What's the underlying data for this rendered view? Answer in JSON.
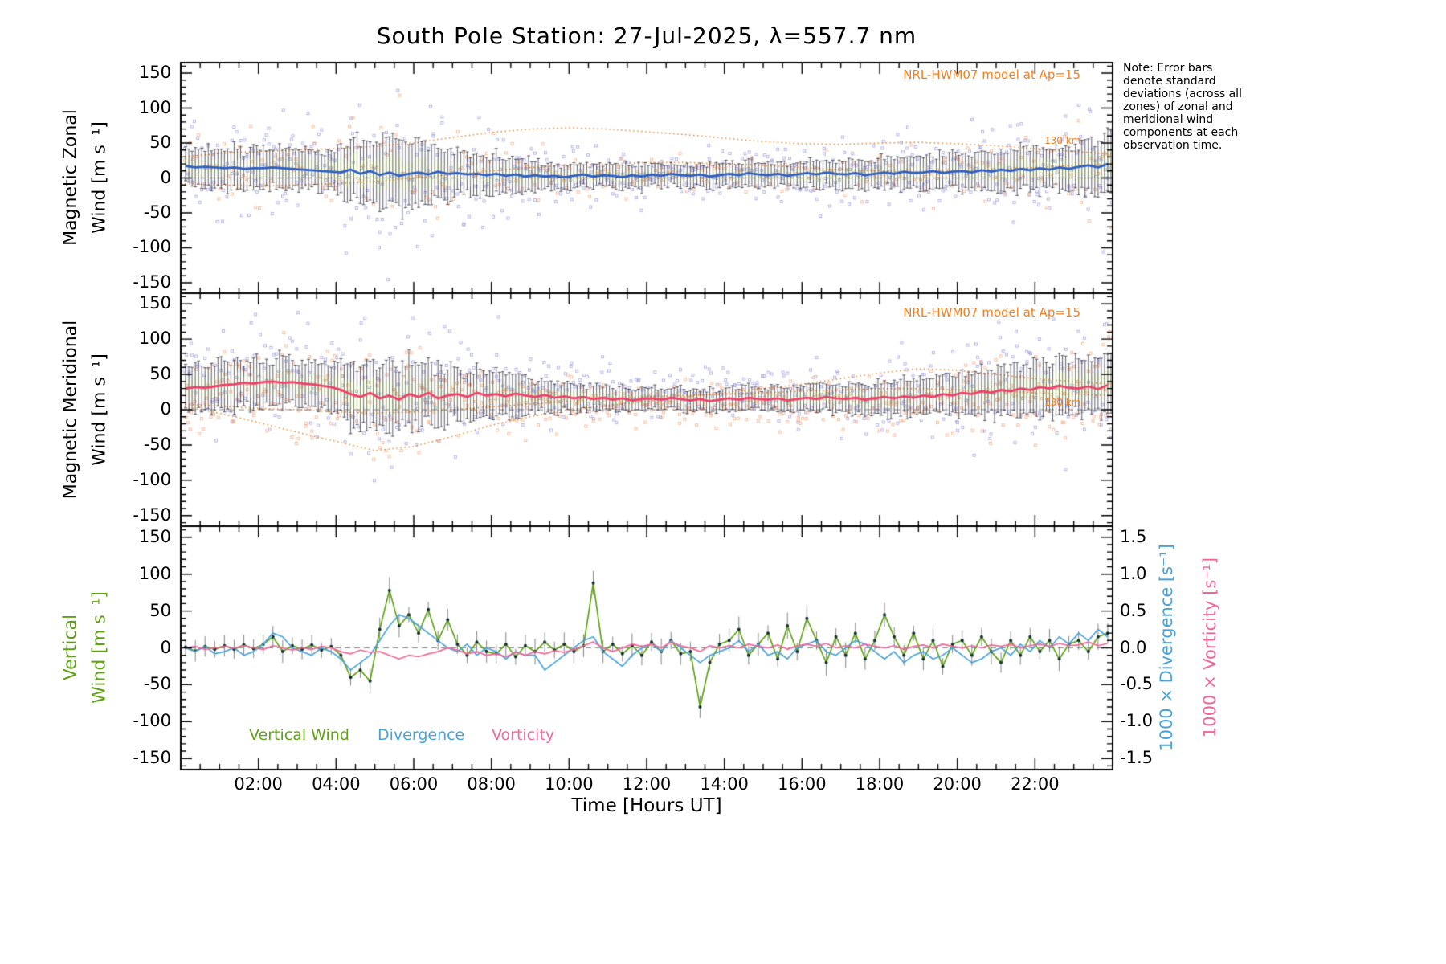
{
  "title": "South Pole Station: 27-Jul-2025, λ=557.7 nm",
  "note": "Note: Error bars denote standard deviations (across all zones) of zonal and meridional wind components at each observation time.",
  "x_axis": {
    "label": "Time [Hours UT]",
    "tick_hours": [
      2,
      4,
      6,
      8,
      10,
      12,
      14,
      16,
      18,
      20,
      22
    ],
    "tick_labels": [
      "02:00",
      "04:00",
      "06:00",
      "08:00",
      "10:00",
      "12:00",
      "14:00",
      "16:00",
      "18:00",
      "20:00",
      "22:00"
    ],
    "range_hours": [
      0,
      24
    ]
  },
  "panels": {
    "zonal": {
      "label_line1": "Magnetic Zonal",
      "label_line2": "Wind [m s⁻¹]",
      "annotation": "NRL-HWM07 model at Ap=15",
      "altitude": "130 km"
    },
    "meridional": {
      "label_line1": "Magnetic Meridional",
      "label_line2": "Wind [m s⁻¹]",
      "annotation": "NRL-HWM07 model at Ap=15",
      "altitude": "130 km"
    },
    "vertical": {
      "label_line1": "Vertical",
      "label_line2": "Wind [m s⁻¹]"
    }
  },
  "right_axes": [
    {
      "label": "1000 × Divergence [s⁻¹]",
      "color": "#4aa3d8"
    },
    {
      "label": "1000 × Vorticity [s⁻¹]",
      "color": "#f0679a"
    }
  ],
  "legend": [
    {
      "label": "Vertical Wind",
      "color": "#5fa314"
    },
    {
      "label": "Divergence",
      "color": "#4aa3d8"
    },
    {
      "label": "Vorticity",
      "color": "#f0679a"
    }
  ],
  "colors": {
    "frame": "#000000",
    "zonal_line": "#2e5fc4",
    "meridional_line": "#ef4068",
    "scatter_lavender": "#9696dc",
    "scatter_salmon": "#f4a073",
    "model_orange": "#f08020",
    "errorbar_dark": "#37374 6",
    "errorbar_green": "#96b446",
    "vertical_line": "#5fa314",
    "vertical_point": "#173238",
    "divergence_line": "#4aa3d8",
    "vorticity_line": "#f0679a",
    "zero_line": "#888888",
    "error_gray": "#888888",
    "annotation_orange": "#f08020"
  },
  "chart_data": [
    {
      "type": "line",
      "title": "Magnetic Zonal Wind",
      "ylabel": "Magnetic Zonal Wind [m s⁻¹]",
      "xlabel": "Time [Hours UT]",
      "ylim": [
        -165,
        165
      ],
      "yticks": [
        -150,
        -100,
        -50,
        0,
        50,
        100,
        150
      ],
      "x_start_hours": 0.125,
      "x_step_hours": 0.25,
      "annotation": "NRL-HWM07 model at Ap=15",
      "altitude_label": "130 km",
      "series": [
        {
          "name": "mean",
          "values": [
            17,
            15,
            16,
            15,
            14,
            15,
            13,
            14,
            14,
            15,
            14,
            13,
            12,
            11,
            10,
            9,
            8,
            12,
            6,
            10,
            4,
            8,
            3,
            6,
            8,
            5,
            9,
            6,
            7,
            5,
            6,
            4,
            6,
            3,
            5,
            2,
            4,
            2,
            3,
            1,
            3,
            5,
            2,
            4,
            3,
            1,
            4,
            2,
            5,
            3,
            6,
            4,
            3,
            5,
            2,
            4,
            6,
            4,
            7,
            5,
            4,
            6,
            3,
            5,
            7,
            5,
            8,
            6,
            5,
            7,
            4,
            6,
            8,
            6,
            9,
            7,
            8,
            10,
            7,
            9,
            10,
            8,
            11,
            9,
            12,
            10,
            13,
            11,
            14,
            12,
            15,
            13,
            16,
            18,
            15,
            20
          ]
        },
        {
          "name": "std",
          "values": [
            25,
            28,
            24,
            30,
            26,
            32,
            27,
            29,
            28,
            25,
            30,
            26,
            27,
            24,
            28,
            25,
            35,
            40,
            45,
            42,
            50,
            46,
            52,
            44,
            48,
            42,
            38,
            36,
            30,
            28,
            32,
            26,
            28,
            24,
            26,
            22,
            20,
            17,
            19,
            16,
            18,
            15,
            17,
            14,
            16,
            18,
            15,
            17,
            14,
            16,
            13,
            15,
            16,
            14,
            17,
            15,
            18,
            16,
            19,
            17,
            16,
            18,
            15,
            17,
            18,
            20,
            17,
            19,
            20,
            18,
            21,
            19,
            22,
            20,
            23,
            21,
            24,
            22,
            25,
            23,
            26,
            24,
            27,
            25,
            28,
            26,
            29,
            27,
            30,
            28,
            32,
            30,
            34,
            38,
            36,
            40
          ]
        },
        {
          "name": "model_upper",
          "x_start_hours": 0,
          "x_step_hours": 1,
          "values": [
            30,
            35,
            38,
            40,
            42,
            45,
            50,
            58,
            65,
            70,
            72,
            70,
            66,
            62,
            57,
            52,
            49,
            48,
            50,
            51,
            49,
            46,
            42,
            38,
            34
          ]
        },
        {
          "name": "model_lower",
          "x_start_hours": 0,
          "x_step_hours": 1,
          "values": [
            -8,
            -10,
            -12,
            -10,
            -8,
            -5,
            0,
            5,
            10,
            15,
            18,
            20,
            22,
            22,
            20,
            18,
            15,
            12,
            10,
            8,
            10,
            12,
            15,
            18,
            20
          ]
        }
      ]
    },
    {
      "type": "line",
      "title": "Magnetic Meridional Wind",
      "ylabel": "Magnetic Meridional Wind [m s⁻¹]",
      "xlabel": "Time [Hours UT]",
      "ylim": [
        -165,
        165
      ],
      "yticks": [
        -150,
        -100,
        -50,
        0,
        50,
        100,
        150
      ],
      "x_start_hours": 0.125,
      "x_step_hours": 0.25,
      "annotation": "NRL-HWM07 model at Ap=15",
      "altitude_label": "130 km",
      "series": [
        {
          "name": "mean",
          "values": [
            30,
            32,
            31,
            33,
            35,
            36,
            38,
            37,
            39,
            40,
            38,
            39,
            37,
            36,
            34,
            32,
            28,
            22,
            18,
            24,
            16,
            20,
            14,
            22,
            18,
            24,
            16,
            20,
            22,
            18,
            24,
            20,
            22,
            19,
            23,
            20,
            18,
            21,
            17,
            19,
            16,
            18,
            15,
            17,
            14,
            16,
            13,
            15,
            16,
            14,
            17,
            15,
            13,
            15,
            12,
            14,
            16,
            14,
            17,
            15,
            14,
            16,
            13,
            15,
            17,
            15,
            18,
            16,
            15,
            17,
            14,
            16,
            18,
            16,
            19,
            17,
            20,
            18,
            22,
            20,
            24,
            22,
            26,
            24,
            28,
            26,
            30,
            28,
            32,
            30,
            34,
            31,
            30,
            33,
            29,
            35
          ]
        },
        {
          "name": "std",
          "values": [
            28,
            32,
            30,
            34,
            32,
            36,
            30,
            34,
            33,
            30,
            35,
            31,
            32,
            29,
            33,
            30,
            38,
            44,
            40,
            48,
            42,
            50,
            40,
            46,
            44,
            38,
            42,
            36,
            34,
            30,
            36,
            32,
            30,
            28,
            32,
            26,
            22,
            20,
            24,
            18,
            20,
            17,
            19,
            16,
            15,
            17,
            14,
            16,
            14,
            15,
            13,
            16,
            15,
            13,
            16,
            14,
            16,
            15,
            17,
            14,
            15,
            17,
            16,
            18,
            17,
            19,
            18,
            20,
            19,
            21,
            20,
            22,
            23,
            21,
            24,
            22,
            26,
            24,
            28,
            26,
            30,
            28,
            32,
            30,
            34,
            32,
            36,
            33,
            38,
            35,
            40,
            37,
            36,
            40,
            38,
            42
          ]
        },
        {
          "name": "model_a",
          "x_start_hours": 0,
          "x_step_hours": 1,
          "values": [
            5,
            -5,
            -18,
            -32,
            -45,
            -58,
            -52,
            -38,
            -22,
            -10,
            0,
            6,
            12,
            18,
            24,
            30,
            36,
            44,
            52,
            58,
            56,
            50,
            44,
            40,
            36
          ]
        },
        {
          "name": "model_b",
          "x_start_hours": 0,
          "x_step_hours": 1,
          "values": [
            8,
            5,
            2,
            0,
            -3,
            -5,
            -3,
            0,
            4,
            8,
            12,
            15,
            18,
            20,
            22,
            24,
            26,
            28,
            30,
            30,
            28,
            26,
            24,
            22,
            20
          ]
        }
      ]
    },
    {
      "type": "line",
      "title": "Vertical Wind, Divergence, Vorticity",
      "xlabel": "Time [Hours UT]",
      "ylim_wind": [
        -165,
        165
      ],
      "yticks": [
        -150,
        -100,
        -50,
        0,
        50,
        100,
        150
      ],
      "ylim_divergence": [
        -1.65,
        1.65
      ],
      "yticks_right": [
        1.5,
        1.0,
        0.5,
        0.0,
        -0.5,
        -1.0,
        -1.5
      ],
      "x_start_hours": 0.125,
      "x_step_hours": 0.25,
      "series": [
        {
          "name": "vertical_wind",
          "values": [
            1,
            -4,
            2,
            -2,
            3,
            -2,
            4,
            -1,
            5,
            15,
            -5,
            3,
            -2,
            4,
            -3,
            2,
            -10,
            -40,
            -30,
            -45,
            25,
            78,
            30,
            45,
            20,
            52,
            10,
            38,
            5,
            -10,
            8,
            -5,
            -8,
            5,
            -12,
            3,
            -5,
            8,
            -3,
            5,
            -5,
            3,
            88,
            -5,
            5,
            -8,
            3,
            -10,
            8,
            -5,
            10,
            -8,
            -5,
            -80,
            -20,
            5,
            10,
            25,
            -10,
            5,
            20,
            -15,
            30,
            -5,
            40,
            10,
            -20,
            15,
            -10,
            20,
            -15,
            10,
            45,
            15,
            -10,
            20,
            -15,
            10,
            -25,
            5,
            10,
            -10,
            15,
            -5,
            -20,
            10,
            -10,
            15,
            -5,
            10,
            -15,
            5,
            10,
            -5,
            15,
            20
          ]
        },
        {
          "name": "divergence_x1000",
          "values": [
            0,
            -0.05,
            0.02,
            -0.08,
            -0.05,
            0,
            -0.1,
            -0.05,
            0.05,
            0.2,
            0.15,
            0,
            -0.05,
            -0.1,
            0,
            -0.05,
            -0.15,
            -0.3,
            -0.2,
            -0.1,
            0.1,
            0.3,
            0.45,
            0.4,
            0.3,
            0.2,
            0.1,
            0,
            -0.05,
            0.05,
            -0.1,
            0,
            -0.05,
            -0.15,
            -0.05,
            -0.1,
            -0.1,
            -0.3,
            -0.2,
            -0.1,
            0,
            0.1,
            0.15,
            -0.05,
            -0.15,
            -0.25,
            -0.1,
            0,
            0.05,
            -0.05,
            0.1,
            0,
            -0.1,
            -0.2,
            -0.1,
            -0.05,
            0,
            0.1,
            -0.05,
            0.05,
            -0.1,
            -0.05,
            -0.15,
            0,
            0.05,
            0.1,
            -0.05,
            -0.1,
            0,
            0.1,
            0.05,
            -0.05,
            -0.15,
            -0.05,
            -0.2,
            -0.1,
            -0.05,
            -0.15,
            -0.1,
            0,
            -0.1,
            -0.2,
            -0.15,
            -0.05,
            0,
            -0.1,
            0.05,
            -0.05,
            0.1,
            0,
            0.15,
            0.05,
            0.2,
            0.1,
            0.25,
            0.15
          ]
        },
        {
          "name": "vorticity_x1000",
          "values": [
            0,
            0.02,
            -0.02,
            0,
            0.02,
            0,
            0.03,
            0,
            -0.02,
            0.03,
            0,
            -0.03,
            0,
            -0.02,
            0.02,
            0,
            -0.05,
            -0.08,
            -0.03,
            -0.06,
            -0.05,
            -0.1,
            -0.15,
            -0.1,
            -0.12,
            -0.08,
            -0.05,
            0,
            -0.03,
            -0.08,
            -0.05,
            -0.1,
            -0.08,
            -0.12,
            -0.06,
            -0.1,
            -0.05,
            -0.08,
            -0.04,
            -0.06,
            -0.02,
            0.03,
            0.08,
            0,
            -0.05,
            0,
            0.05,
            0.02,
            0.05,
            0,
            0.08,
            0.03,
            0,
            -0.05,
            0.03,
            0,
            0.03,
            0,
            0.05,
            0.02,
            0,
            0.04,
            -0.02,
            0.03,
            0.05,
            0.02,
            0.06,
            0,
            0.03,
            0,
            0.05,
            0.02,
            0,
            0.03,
            -0.02,
            0.02,
            0.04,
            0,
            0.05,
            0.02,
            0,
            0.03,
            0,
            0.04,
            0.02,
            0.05,
            0,
            0.03,
            0.05,
            0.02,
            0.06,
            0.03,
            0.04,
            0.08,
            0.03,
            0.06
          ]
        }
      ]
    }
  ]
}
